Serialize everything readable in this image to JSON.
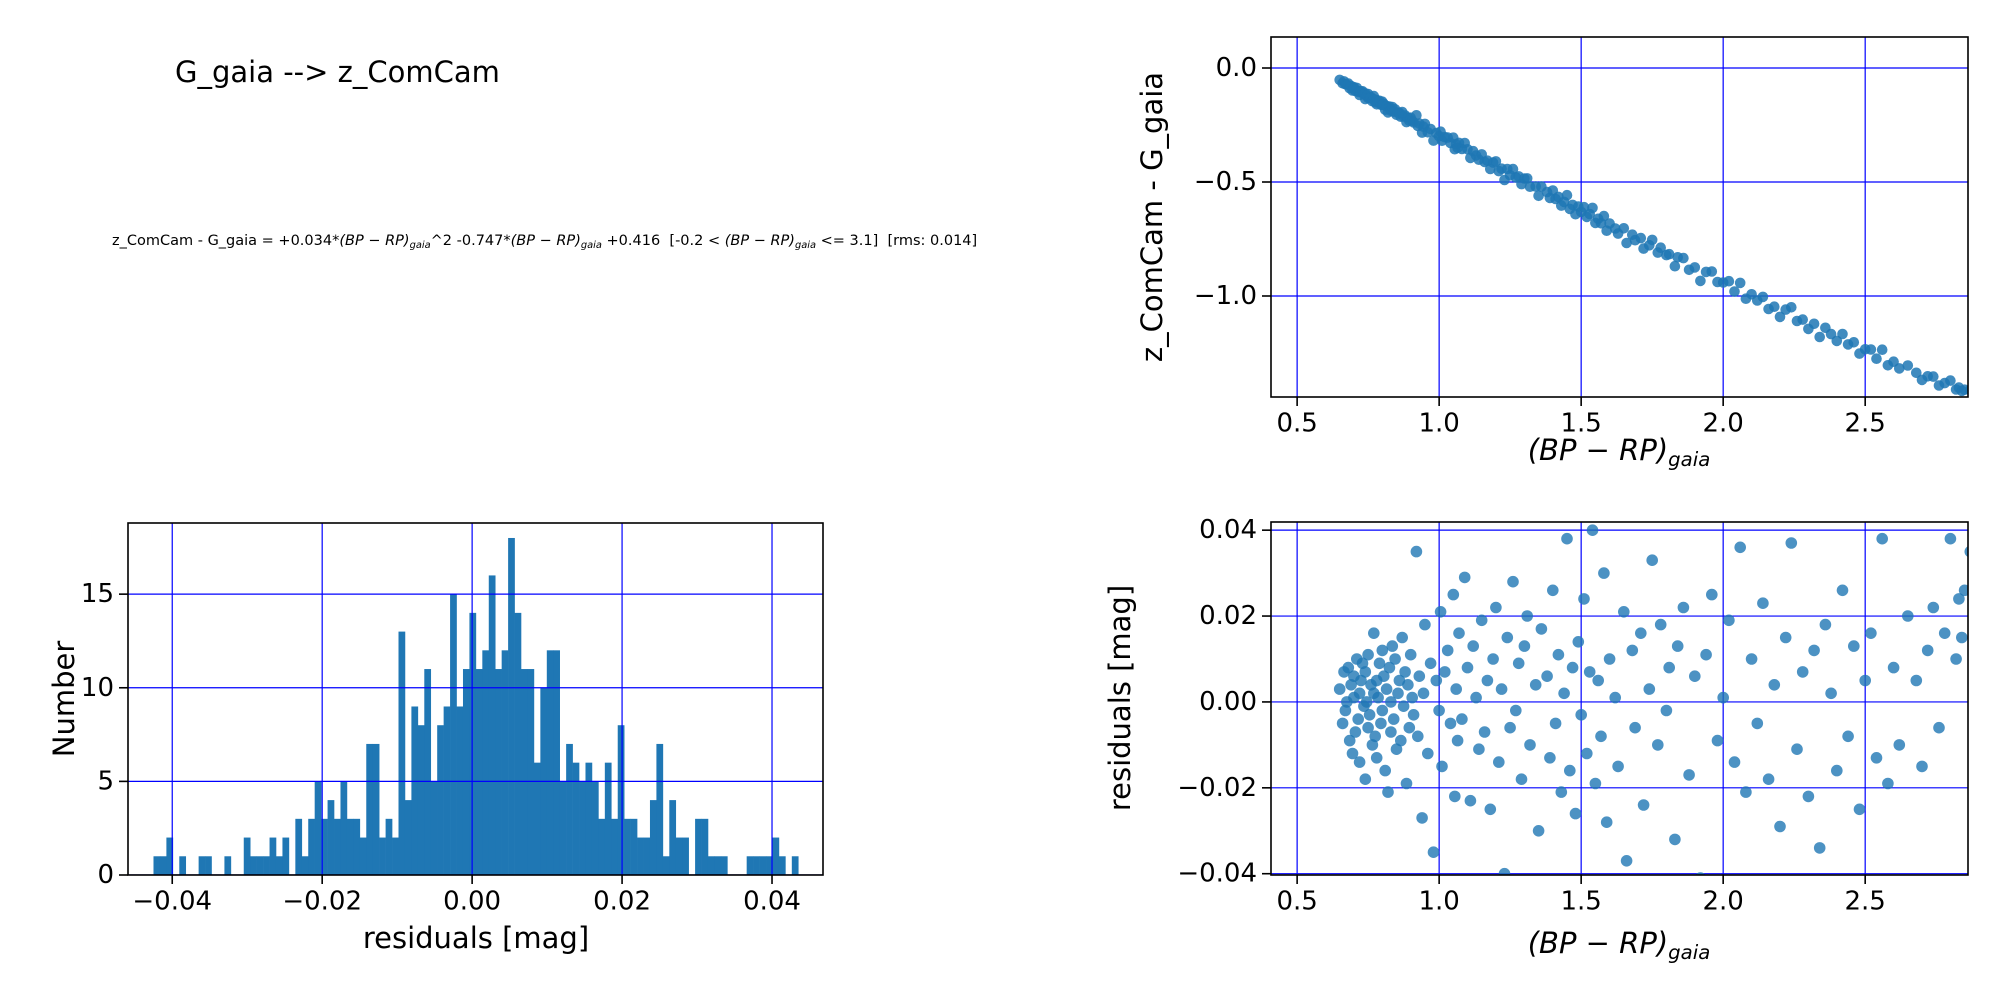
{
  "title": "G_gaia --> z_ComCam",
  "equation": {
    "plain_text": "z_ComCam - G_gaia = +0.034*(BP-RP)_gaia^2 -0.747*(BP-RP)_gaia +0.416  [-0.2 < (BP-RP)_gaia <= 3.1]  [rms: 0.014]",
    "segments": [
      {
        "t": "z_ComCam - G_gaia = +0.034*"
      },
      {
        "t": "(",
        "italic": true
      },
      {
        "t": "BP − RP",
        "italic": true
      },
      {
        "t": ")",
        "italic": true
      },
      {
        "t": "gaia",
        "italic": true,
        "sub": true
      },
      {
        "t": "^2 -0.747*"
      },
      {
        "t": "(",
        "italic": true
      },
      {
        "t": "BP − RP",
        "italic": true
      },
      {
        "t": ")",
        "italic": true
      },
      {
        "t": "gaia",
        "italic": true,
        "sub": true
      },
      {
        "t": " +0.416  [-0.2 < "
      },
      {
        "t": "(",
        "italic": true
      },
      {
        "t": "BP − RP",
        "italic": true
      },
      {
        "t": ")",
        "italic": true
      },
      {
        "t": "gaia",
        "italic": true,
        "sub": true
      },
      {
        "t": " <= 3.1]  [rms: 0.014]"
      }
    ]
  },
  "colors": {
    "marker": "#1f77b4",
    "hist_fill": "#1f77b4",
    "grid": "#0000ff",
    "axis": "#000000",
    "background": "#ffffff"
  },
  "xlabel_math_segments": [
    {
      "t": "(",
      "italic": true
    },
    {
      "t": "BP − RP",
      "italic": true
    },
    {
      "t": ")",
      "italic": true
    },
    {
      "t": "gaia",
      "italic": true,
      "sub": true
    }
  ],
  "chart_data": [
    {
      "id": "color-magdiff-scatter",
      "type": "scatter",
      "xlabel": "(BP − RP)_gaia",
      "ylabel": "z_ComCam - G_gaia",
      "xlim": [
        0.408,
        2.862
      ],
      "ylim": [
        -1.443,
        0.136
      ],
      "xticks": [
        0.5,
        1.0,
        1.5,
        2.0,
        2.5
      ],
      "xtick_labels": [
        "0.5",
        "1.0",
        "1.5",
        "2.0",
        "2.5"
      ],
      "yticks": [
        0.0,
        -0.5,
        -1.0
      ],
      "ytick_labels": [
        "0.0",
        "−0.5",
        "−1.0"
      ],
      "grid": true,
      "marker_radius": 5.3,
      "marker_opacity": 0.85,
      "y_formula": "y = 0.034*x^2 - 0.747*x + 0.416 + residual",
      "fit": {
        "a": 0.034,
        "b": -0.747,
        "c": 0.416
      },
      "x": [
        0.65,
        0.66,
        0.665,
        0.67,
        0.675,
        0.68,
        0.685,
        0.69,
        0.695,
        0.7,
        0.7,
        0.705,
        0.71,
        0.715,
        0.72,
        0.72,
        0.725,
        0.73,
        0.735,
        0.74,
        0.74,
        0.745,
        0.75,
        0.75,
        0.755,
        0.76,
        0.765,
        0.77,
        0.77,
        0.775,
        0.78,
        0.78,
        0.785,
        0.79,
        0.795,
        0.8,
        0.8,
        0.805,
        0.81,
        0.815,
        0.82,
        0.825,
        0.83,
        0.83,
        0.835,
        0.84,
        0.845,
        0.85,
        0.855,
        0.86,
        0.865,
        0.87,
        0.875,
        0.88,
        0.885,
        0.89,
        0.895,
        0.9,
        0.905,
        0.91,
        0.92,
        0.925,
        0.93,
        0.94,
        0.945,
        0.95,
        0.96,
        0.97,
        0.98,
        0.99,
        1.0,
        1.005,
        1.01,
        1.02,
        1.03,
        1.04,
        1.05,
        1.055,
        1.06,
        1.065,
        1.07,
        1.08,
        1.09,
        1.1,
        1.11,
        1.12,
        1.13,
        1.14,
        1.15,
        1.16,
        1.17,
        1.18,
        1.19,
        1.2,
        1.21,
        1.22,
        1.23,
        1.24,
        1.25,
        1.26,
        1.27,
        1.28,
        1.29,
        1.3,
        1.31,
        1.32,
        1.34,
        1.35,
        1.36,
        1.38,
        1.39,
        1.4,
        1.41,
        1.42,
        1.43,
        1.44,
        1.45,
        1.46,
        1.47,
        1.48,
        1.49,
        1.5,
        1.51,
        1.52,
        1.53,
        1.54,
        1.55,
        1.56,
        1.57,
        1.58,
        1.59,
        1.6,
        1.62,
        1.63,
        1.65,
        1.66,
        1.68,
        1.69,
        1.71,
        1.72,
        1.74,
        1.75,
        1.77,
        1.78,
        1.8,
        1.81,
        1.83,
        1.84,
        1.86,
        1.88,
        1.9,
        1.92,
        1.94,
        1.96,
        1.98,
        2.0,
        2.02,
        2.04,
        2.06,
        2.08,
        2.1,
        2.12,
        2.14,
        2.16,
        2.18,
        2.2,
        2.22,
        2.24,
        2.26,
        2.28,
        2.3,
        2.32,
        2.34,
        2.36,
        2.38,
        2.4,
        2.42,
        2.44,
        2.46,
        2.48,
        2.5,
        2.52,
        2.54,
        2.56,
        2.58,
        2.6,
        2.62,
        2.65,
        2.68,
        2.7,
        2.72,
        2.74,
        2.76,
        2.78,
        2.8,
        2.82,
        2.83,
        2.84,
        2.85,
        2.87
      ],
      "residuals": [
        0.003,
        -0.005,
        0.007,
        -0.002,
        0.0,
        0.008,
        -0.009,
        0.004,
        -0.012,
        0.006,
        0.001,
        -0.007,
        0.01,
        -0.004,
        0.002,
        -0.014,
        0.005,
        0.009,
        -0.001,
        -0.018,
        0.007,
        0.0,
        -0.006,
        0.011,
        -0.003,
        0.004,
        -0.01,
        0.002,
        0.016,
        -0.008,
        0.005,
        -0.013,
        0.001,
        0.009,
        -0.005,
        0.012,
        -0.002,
        0.006,
        -0.016,
        0.003,
        -0.021,
        0.008,
        0.0,
        -0.007,
        0.013,
        -0.004,
        0.01,
        -0.011,
        0.002,
        0.005,
        -0.009,
        0.015,
        -0.001,
        0.007,
        -0.019,
        0.004,
        -0.006,
        0.011,
        0.001,
        -0.003,
        0.035,
        -0.008,
        0.006,
        -0.027,
        0.002,
        0.018,
        -0.012,
        0.009,
        -0.035,
        0.005,
        -0.002,
        0.021,
        -0.015,
        0.007,
        0.012,
        -0.005,
        0.025,
        -0.022,
        0.003,
        -0.009,
        0.016,
        -0.004,
        0.029,
        0.008,
        -0.023,
        0.013,
        0.001,
        -0.011,
        0.019,
        -0.007,
        0.005,
        -0.025,
        0.01,
        0.022,
        -0.014,
        0.003,
        -0.04,
        0.015,
        -0.006,
        0.028,
        -0.002,
        0.009,
        -0.018,
        0.013,
        0.02,
        -0.01,
        0.004,
        -0.03,
        0.017,
        0.006,
        -0.013,
        0.026,
        -0.005,
        0.011,
        -0.021,
        0.002,
        0.038,
        -0.016,
        0.008,
        -0.026,
        0.014,
        -0.003,
        0.024,
        -0.012,
        0.007,
        0.04,
        -0.019,
        0.005,
        -0.008,
        0.03,
        -0.028,
        0.01,
        0.001,
        -0.015,
        0.021,
        -0.037,
        0.012,
        -0.006,
        0.016,
        -0.024,
        0.003,
        0.033,
        -0.01,
        0.018,
        -0.002,
        0.008,
        -0.032,
        0.013,
        0.022,
        -0.017,
        0.006,
        -0.041,
        0.011,
        0.025,
        -0.009,
        0.001,
        0.019,
        -0.014,
        0.036,
        -0.021,
        0.01,
        -0.005,
        0.023,
        -0.018,
        0.004,
        -0.029,
        0.015,
        0.037,
        -0.011,
        0.007,
        -0.022,
        0.012,
        -0.034,
        0.018,
        0.002,
        -0.016,
        0.026,
        -0.008,
        0.013,
        -0.025,
        0.005,
        0.016,
        -0.013,
        0.038,
        -0.019,
        0.008,
        -0.01,
        0.02,
        0.005,
        -0.015,
        0.012,
        0.022,
        -0.006,
        0.016,
        0.038,
        0.01,
        0.024,
        0.015,
        0.026,
        0.035
      ]
    },
    {
      "id": "residuals-histogram",
      "type": "bar",
      "xlabel": "residuals [mag]",
      "ylabel": "Number",
      "xlim": [
        -0.0459,
        0.0468
      ],
      "ylim": [
        0,
        18.8
      ],
      "xticks": [
        -0.04,
        -0.02,
        0.0,
        0.02,
        0.04
      ],
      "xtick_labels": [
        "−0.04",
        "−0.02",
        "0.00",
        "0.02",
        "0.04"
      ],
      "yticks": [
        0,
        5,
        10,
        15
      ],
      "ytick_labels": [
        "0",
        "5",
        "10",
        "15"
      ],
      "grid": true,
      "bin_start": -0.0425,
      "bin_width": 0.00086,
      "counts": [
        1,
        1,
        2,
        0,
        1,
        0,
        0,
        1,
        1,
        0,
        0,
        1,
        0,
        0,
        2,
        1,
        1,
        1,
        2,
        1,
        2,
        0,
        3,
        1,
        3,
        5,
        3,
        4,
        3,
        5,
        3,
        3,
        2,
        7,
        7,
        2,
        3,
        2,
        13,
        4,
        9,
        8,
        11,
        5,
        8,
        9,
        15,
        9,
        11,
        14,
        11,
        12,
        16,
        11,
        12,
        18,
        14,
        11,
        11,
        6,
        10,
        12,
        12,
        5,
        7,
        6,
        5,
        6,
        5,
        3,
        6,
        3,
        8,
        3,
        3,
        2,
        2,
        4,
        7,
        1,
        4,
        2,
        2,
        0,
        3,
        3,
        1,
        1,
        1,
        0,
        0,
        0,
        1,
        1,
        1,
        1,
        2,
        1,
        0,
        1
      ]
    },
    {
      "id": "residuals-vs-color-scatter",
      "type": "scatter",
      "xlabel": "(BP − RP)_gaia",
      "ylabel": "residuals [mag]",
      "xlim": [
        0.408,
        2.862
      ],
      "ylim": [
        -0.0403,
        0.0419
      ],
      "xticks": [
        0.5,
        1.0,
        1.5,
        2.0,
        2.5
      ],
      "xtick_labels": [
        "0.5",
        "1.0",
        "1.5",
        "2.0",
        "2.5"
      ],
      "yticks": [
        0.04,
        0.02,
        0.0,
        -0.02,
        -0.04
      ],
      "ytick_labels": [
        "0.04",
        "0.02",
        "0.00",
        "−0.02",
        "−0.04"
      ],
      "grid": true,
      "marker_radius": 5.8,
      "marker_opacity": 0.8,
      "x_source": "shared with chart_data[0].x",
      "y_source": "chart_data[0].residuals"
    }
  ]
}
